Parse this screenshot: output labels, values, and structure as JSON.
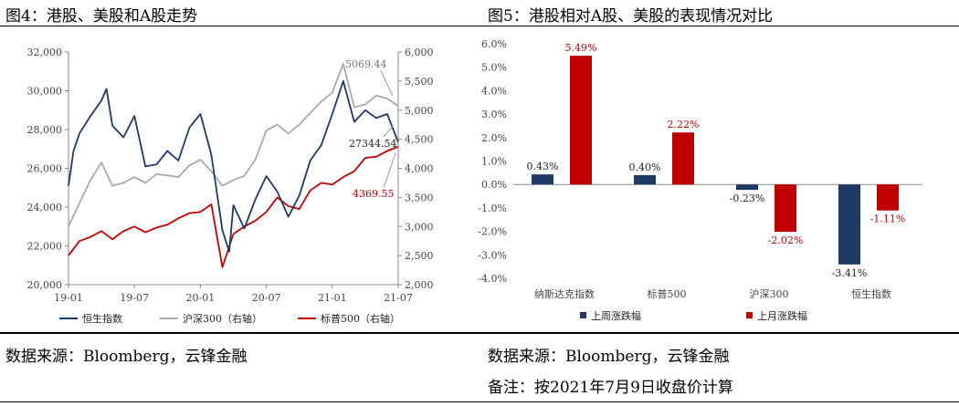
{
  "titles": {
    "left": "图4：港股、美股和A股走势",
    "right": "图5：港股相对A股、美股的表现情况对比"
  },
  "footers": {
    "left_source": "数据来源：Bloomberg，云锋金融",
    "right_source": "数据来源：Bloomberg，云锋金融",
    "right_note": "备注：按2021年7月9日收盘价计算"
  },
  "chart_data": [
    {
      "type": "line",
      "title": "图4：港股、美股和A股走势",
      "x_ticks": [
        "19-01",
        "19-07",
        "20-01",
        "20-07",
        "21-01",
        "21-07"
      ],
      "x_range": [
        "2019-01",
        "2021-07"
      ],
      "y_left_ticks": [
        "20,000",
        "22,000",
        "24,000",
        "26,000",
        "28,000",
        "30,000",
        "32,000"
      ],
      "y_left_range": [
        20000,
        32000
      ],
      "y_right_ticks": [
        "2,000",
        "2,500",
        "3,000",
        "3,500",
        "4,000",
        "4,500",
        "5,000",
        "5,500",
        "6,000"
      ],
      "y_right_range": [
        2000,
        6000
      ],
      "grid": false,
      "legend_placement": "bottom",
      "annotations": [
        "5069.44",
        "27344.54",
        "4369.55"
      ],
      "series": [
        {
          "name": "恒生指数",
          "axis": "left",
          "color": "#1f3864",
          "points": [
            [
              "2019-01",
              25100
            ],
            [
              "2019-01-15",
              26900
            ],
            [
              "2019-02",
              27800
            ],
            [
              "2019-03",
              28700
            ],
            [
              "2019-04",
              29500
            ],
            [
              "2019-04-15",
              30100
            ],
            [
              "2019-05",
              28200
            ],
            [
              "2019-06",
              27600
            ],
            [
              "2019-07",
              28700
            ],
            [
              "2019-08",
              26100
            ],
            [
              "2019-09",
              26200
            ],
            [
              "2019-10",
              26900
            ],
            [
              "2019-11",
              26400
            ],
            [
              "2019-12",
              28100
            ],
            [
              "2020-01",
              28800
            ],
            [
              "2020-02",
              26700
            ],
            [
              "2020-03",
              22800
            ],
            [
              "2020-03-20",
              21700
            ],
            [
              "2020-04",
              24100
            ],
            [
              "2020-05",
              22900
            ],
            [
              "2020-06",
              24400
            ],
            [
              "2020-07",
              25600
            ],
            [
              "2020-08",
              24800
            ],
            [
              "2020-09",
              23500
            ],
            [
              "2020-10",
              24600
            ],
            [
              "2020-11",
              26400
            ],
            [
              "2020-12",
              27200
            ],
            [
              "2021-01",
              28800
            ],
            [
              "2021-02",
              30500
            ],
            [
              "2021-03",
              28400
            ],
            [
              "2021-04",
              29000
            ],
            [
              "2021-05",
              28600
            ],
            [
              "2021-06",
              28800
            ],
            [
              "2021-07",
              27344.54
            ]
          ]
        },
        {
          "name": "沪深300（右轴）",
          "axis": "right",
          "color": "#aaaaaa",
          "points": [
            [
              "2019-01",
              3000
            ],
            [
              "2019-02",
              3400
            ],
            [
              "2019-03",
              3800
            ],
            [
              "2019-04",
              4100
            ],
            [
              "2019-05",
              3700
            ],
            [
              "2019-06",
              3750
            ],
            [
              "2019-07",
              3850
            ],
            [
              "2019-08",
              3750
            ],
            [
              "2019-09",
              3900
            ],
            [
              "2019-10",
              3880
            ],
            [
              "2019-11",
              3850
            ],
            [
              "2019-12",
              4050
            ],
            [
              "2020-01",
              4150
            ],
            [
              "2020-02",
              3950
            ],
            [
              "2020-03",
              3700
            ],
            [
              "2020-04",
              3800
            ],
            [
              "2020-05",
              3870
            ],
            [
              "2020-06",
              4150
            ],
            [
              "2020-07",
              4650
            ],
            [
              "2020-08",
              4750
            ],
            [
              "2020-09",
              4600
            ],
            [
              "2020-10",
              4750
            ],
            [
              "2020-11",
              4950
            ],
            [
              "2020-12",
              5150
            ],
            [
              "2021-01",
              5300
            ],
            [
              "2021-02",
              5800
            ],
            [
              "2021-03",
              5050
            ],
            [
              "2021-04",
              5100
            ],
            [
              "2021-05",
              5250
            ],
            [
              "2021-06",
              5200
            ],
            [
              "2021-07",
              5069.44
            ]
          ]
        },
        {
          "name": "标普500（右轴）",
          "axis": "right",
          "color": "#c00000",
          "points": [
            [
              "2019-01",
              2500
            ],
            [
              "2019-02",
              2750
            ],
            [
              "2019-03",
              2820
            ],
            [
              "2019-04",
              2920
            ],
            [
              "2019-05",
              2780
            ],
            [
              "2019-06",
              2920
            ],
            [
              "2019-07",
              3000
            ],
            [
              "2019-08",
              2900
            ],
            [
              "2019-09",
              2980
            ],
            [
              "2019-10",
              3030
            ],
            [
              "2019-11",
              3140
            ],
            [
              "2019-12",
              3230
            ],
            [
              "2020-01",
              3250
            ],
            [
              "2020-02",
              3380
            ],
            [
              "2020-03",
              2300
            ],
            [
              "2020-04",
              2870
            ],
            [
              "2020-05",
              3000
            ],
            [
              "2020-06",
              3100
            ],
            [
              "2020-07",
              3250
            ],
            [
              "2020-08",
              3500
            ],
            [
              "2020-09",
              3350
            ],
            [
              "2020-10",
              3300
            ],
            [
              "2020-11",
              3620
            ],
            [
              "2020-12",
              3750
            ],
            [
              "2021-01",
              3720
            ],
            [
              "2021-02",
              3850
            ],
            [
              "2021-03",
              3950
            ],
            [
              "2021-04",
              4180
            ],
            [
              "2021-05",
              4200
            ],
            [
              "2021-06",
              4300
            ],
            [
              "2021-07",
              4369.55
            ]
          ]
        }
      ]
    },
    {
      "type": "bar",
      "title": "图5：港股相对A股、美股的表现情况对比",
      "categories": [
        "纳斯达克指数",
        "标普500",
        "沪深300",
        "恒生指数"
      ],
      "y_ticks": [
        "-4.0%",
        "-3.0%",
        "-2.0%",
        "-1.0%",
        "0.0%",
        "1.0%",
        "2.0%",
        "3.0%",
        "4.0%",
        "5.0%",
        "6.0%"
      ],
      "ylim": [
        -4.0,
        6.0
      ],
      "grid": false,
      "legend_placement": "bottom",
      "series": [
        {
          "name": "上周涨跌幅",
          "color": "#1f3864",
          "values": [
            0.43,
            0.4,
            -0.23,
            -3.41
          ],
          "labels": [
            "0.43%",
            "0.40%",
            "-0.23%",
            "-3.41%"
          ]
        },
        {
          "name": "上月涨跌幅",
          "color": "#c00000",
          "values": [
            5.49,
            2.22,
            -2.02,
            -1.11
          ],
          "labels": [
            "5.49%",
            "2.22%",
            "-2.02%",
            "-1.11%"
          ]
        }
      ]
    }
  ]
}
